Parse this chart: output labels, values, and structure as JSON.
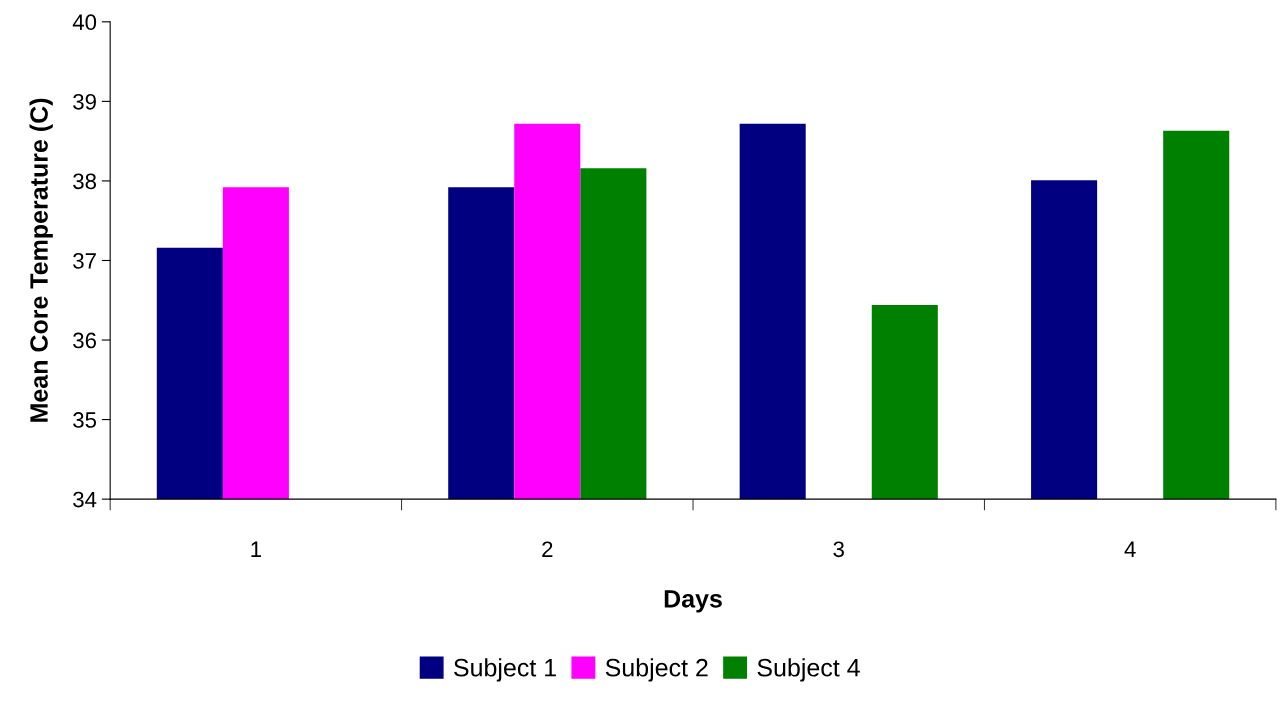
{
  "chart_data": {
    "type": "bar",
    "xlabel": "Days",
    "ylabel": "Mean Core Temperature (C)",
    "categories": [
      "1",
      "2",
      "3",
      "4"
    ],
    "series": [
      {
        "name": "Subject 1",
        "color": "#000080",
        "values": [
          37.16,
          37.92,
          38.72,
          38.01
        ]
      },
      {
        "name": "Subject 2",
        "color": "#ff00ff",
        "values": [
          37.92,
          38.72,
          null,
          null
        ]
      },
      {
        "name": "Subject 4",
        "color": "#008000",
        "values": [
          null,
          38.16,
          36.44,
          38.63
        ]
      }
    ],
    "ylim": [
      34,
      40
    ],
    "yticks": [
      34,
      35,
      36,
      37,
      38,
      39,
      40
    ],
    "grid": false,
    "legend": "bottom"
  }
}
